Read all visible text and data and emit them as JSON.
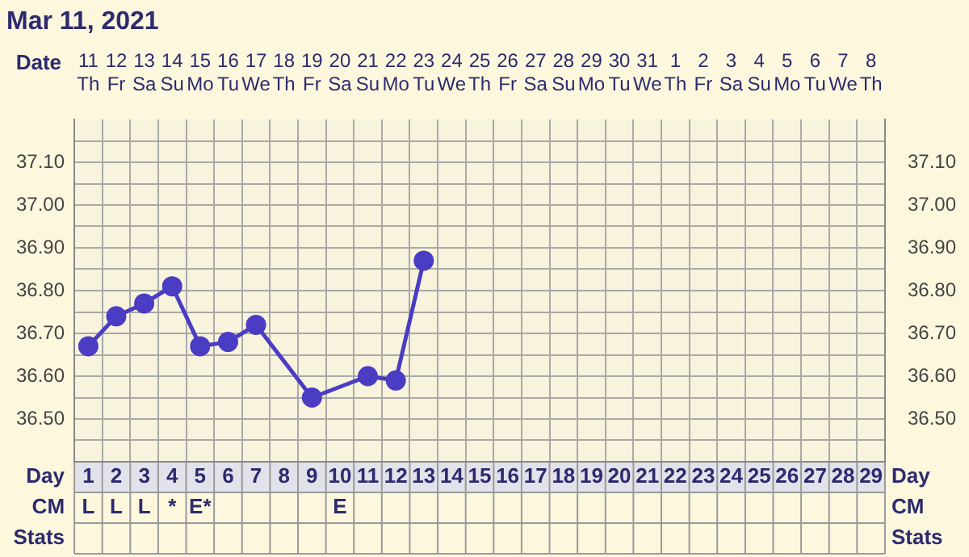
{
  "chart_data": {
    "type": "line",
    "title": "Mar 11, 2021",
    "xlabel": "Day",
    "x2label": "Date",
    "categories": [
      "1 L",
      "2 L",
      "3 L",
      "4 *",
      "5 E*",
      "6",
      "7",
      "8",
      "9",
      "10 E",
      "11",
      "12",
      "13",
      "14",
      "15",
      "16",
      "17",
      "18",
      "19",
      "20",
      "21",
      "22",
      "23",
      "24",
      "25",
      "26",
      "27",
      "28",
      "29"
    ],
    "series": [
      {
        "color": "#4b3cc4",
        "values": [
          36.67,
          36.74,
          36.77,
          36.81,
          36.67,
          36.68,
          36.72,
          null,
          36.55,
          null,
          36.6,
          36.59,
          36.87,
          null,
          null,
          null,
          null,
          null,
          null,
          null,
          null,
          null,
          null,
          null,
          null,
          null,
          null,
          null,
          null
        ]
      }
    ],
    "ylim": [
      36.4,
      37.2
    ],
    "yticks": [
      {
        "value": 36.45,
        "label": null
      },
      {
        "value": 36.5,
        "label": "36.50"
      },
      {
        "value": 36.55,
        "label": null
      },
      {
        "value": 36.6,
        "label": "36.60"
      },
      {
        "value": 36.65,
        "label": null
      },
      {
        "value": 36.7,
        "label": "36.70"
      },
      {
        "value": 36.75,
        "label": null
      },
      {
        "value": 36.8,
        "label": "36.80"
      },
      {
        "value": 36.85,
        "label": null
      },
      {
        "value": 36.9,
        "label": "36.90"
      },
      {
        "value": 36.95,
        "label": null
      },
      {
        "value": 37.0,
        "label": "37.00"
      },
      {
        "value": 37.05,
        "label": null
      },
      {
        "value": 37.1,
        "label": "37.10"
      },
      {
        "value": 37.15,
        "label": null
      }
    ],
    "y2lim": [
      36.4,
      37.2
    ],
    "y2ticks": [
      {
        "value": 36.5,
        "label": "36.50"
      },
      {
        "value": 36.6,
        "label": "36.60"
      },
      {
        "value": 36.7,
        "label": "36.70"
      },
      {
        "value": 36.8,
        "label": "36.80"
      },
      {
        "value": 36.9,
        "label": "36.90"
      },
      {
        "value": 37.0,
        "label": "37.00"
      },
      {
        "value": 37.1,
        "label": "37.10"
      }
    ],
    "x2lim": [
      "2021-03-10T12:00",
      "2021-04-08T12:00"
    ],
    "x2ticks": [
      {
        "value": "2021-03-11",
        "label": "11 Th"
      },
      {
        "value": "2021-03-12",
        "label": "12 Fr"
      },
      {
        "value": "2021-03-13",
        "label": "13 Sa"
      },
      {
        "value": "2021-03-14",
        "label": "14 Su"
      },
      {
        "value": "2021-03-15",
        "label": "15 Mo"
      },
      {
        "value": "2021-03-16",
        "label": "16 Tu"
      },
      {
        "value": "2021-03-17",
        "label": "17 We"
      },
      {
        "value": "2021-03-18",
        "label": "18 Th"
      },
      {
        "value": "2021-03-19",
        "label": "19 Fr"
      },
      {
        "value": "2021-03-20",
        "label": "20 Sa"
      },
      {
        "value": "2021-03-21",
        "label": "21 Su"
      },
      {
        "value": "2021-03-22",
        "label": "22 Mo"
      },
      {
        "value": "2021-03-23",
        "label": "23 Tu"
      },
      {
        "value": "2021-03-24",
        "label": "24 We"
      },
      {
        "value": "2021-03-25",
        "label": "25 Th"
      },
      {
        "value": "2021-03-26",
        "label": "26 Fr"
      },
      {
        "value": "2021-03-27",
        "label": "27 Sa"
      },
      {
        "value": "2021-03-28",
        "label": "28 Su"
      },
      {
        "value": "2021-03-29",
        "label": "29 Mo"
      },
      {
        "value": "2021-03-30",
        "label": "30 Tu"
      },
      {
        "value": "2021-03-31",
        "label": "31 We"
      },
      {
        "value": "2021-04-01",
        "label": "1 Th"
      },
      {
        "value": "2021-04-02",
        "label": "2 Fr"
      },
      {
        "value": "2021-04-03",
        "label": "3 Sa"
      },
      {
        "value": "2021-04-04",
        "label": "4 Su"
      },
      {
        "value": "2021-04-05",
        "label": "5 Mo"
      },
      {
        "value": "2021-04-06",
        "label": "6 Tu"
      },
      {
        "value": "2021-04-07",
        "label": "7 We"
      },
      {
        "value": "2021-04-08",
        "label": "8 Th"
      }
    ],
    "annotations": [
      "CM",
      "Stats"
    ],
    "grid": true,
    "marker": "circle",
    "line_style": "solid",
    "legend": false
  }
}
